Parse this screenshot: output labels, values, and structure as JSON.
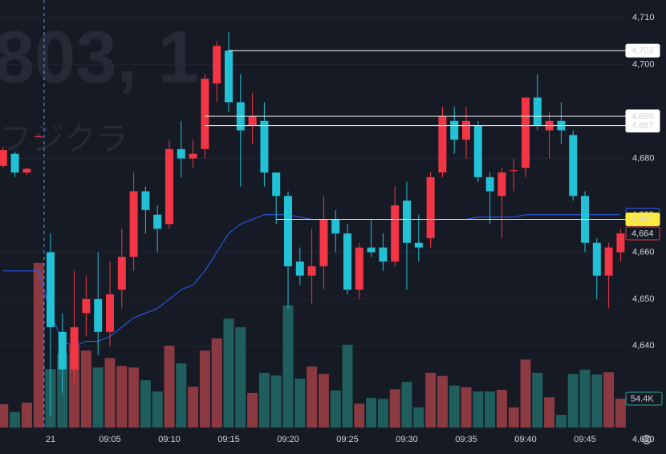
{
  "chart_data": {
    "type": "candlestick",
    "watermark_code": "803, 1",
    "watermark_name": "フジクラ",
    "categories": [
      null,
      null,
      null,
      null,
      "21",
      null,
      null,
      null,
      null,
      "09:05",
      null,
      null,
      null,
      null,
      "09:10",
      null,
      null,
      null,
      null,
      "09:15",
      null,
      null,
      null,
      null,
      "09:20",
      null,
      null,
      null,
      null,
      "09:25",
      null,
      null,
      null,
      null,
      "09:30",
      null,
      null,
      null,
      null,
      "09:35",
      null,
      null,
      null,
      null,
      "09:40",
      null,
      null,
      null,
      null,
      "09:45",
      null,
      null,
      null
    ],
    "open": [
      4678.4,
      4681,
      4677,
      4684.7,
      4660,
      4643,
      4635,
      4647,
      4650,
      4643,
      4652,
      4659,
      4673,
      4668,
      4666,
      4682,
      4680,
      4682,
      4696,
      4703,
      4692,
      4687,
      4688,
      4677,
      4672,
      4658,
      4655,
      4657,
      4667,
      4664,
      4652,
      4661,
      4661,
      4658,
      4671,
      4662,
      4663,
      4677,
      4688,
      4684,
      4687,
      4676,
      4672,
      4677.5,
      4678,
      4693,
      4686,
      4688,
      4685,
      4672,
      4662,
      4655,
      4660
    ],
    "high": [
      4682.5,
      4681.5,
      4678,
      4685,
      4664,
      4647,
      4656,
      4655,
      4660,
      4658,
      4665,
      4677,
      4674,
      4670,
      4684,
      4688,
      4684,
      4698,
      4705,
      4707,
      4698,
      4694,
      4692,
      4677,
      4673,
      4661,
      4665,
      4672,
      4669,
      4666,
      4662,
      4667,
      4664,
      4674,
      4675,
      4668,
      4677,
      4691,
      4691,
      4691,
      4688,
      4677,
      4678,
      4680,
      4693,
      4698,
      4690,
      4692,
      4686,
      4673,
      4663,
      4662,
      4665
    ],
    "low": [
      4678,
      4676,
      4676.5,
      4684.5,
      4625,
      4630,
      4632,
      4642,
      4638,
      4640,
      4648,
      4656,
      4664,
      4660,
      4665,
      4676,
      4678,
      4680,
      4692,
      4690,
      4674,
      4683,
      4674,
      4666,
      4648,
      4653,
      4649,
      4652,
      4660,
      4651,
      4650,
      4659,
      4656,
      4657,
      4652,
      4658,
      4661,
      4676,
      4681,
      4680,
      4675,
      4666,
      4663,
      4673,
      4676,
      4686,
      4680,
      4683,
      4671,
      4660,
      4650,
      4648,
      4658
    ],
    "close": [
      4681.8,
      4677,
      4677.8,
      4684.7,
      4644,
      4635,
      4644,
      4650,
      4643,
      4651,
      4659,
      4673,
      4669,
      4665,
      4682,
      4680,
      4681,
      4697,
      4704,
      4692,
      4686,
      4689,
      4677,
      4672,
      4657,
      4655,
      4657,
      4667,
      4664,
      4652,
      4661,
      4660,
      4658,
      4670,
      4662,
      4661,
      4676,
      4689,
      4684,
      4688,
      4676,
      4673,
      4677,
      4677.5,
      4693,
      4687,
      4688,
      4686,
      4672,
      4662,
      4655,
      4661,
      4664
    ],
    "volume": [
      44,
      29,
      47,
      310,
      110,
      140,
      156,
      145,
      113,
      131,
      116,
      113,
      89,
      68,
      154,
      121,
      77,
      145,
      168,
      205,
      189,
      65,
      103,
      98,
      230,
      92,
      115,
      101,
      70,
      156,
      45,
      56,
      54,
      72,
      86,
      38,
      103,
      97,
      79,
      76,
      68,
      68,
      71,
      38,
      128,
      103,
      57,
      24,
      101,
      109,
      100,
      104,
      54.4
    ],
    "volume_label": "54.4K",
    "volume_ylim": [
      0,
      805
    ],
    "ma": [
      4656,
      4656,
      4656,
      4656,
      4647,
      4641,
      4640,
      4641,
      4641,
      4642,
      4644,
      4646,
      4647,
      4648,
      4650,
      4652,
      4653,
      4656,
      4660,
      4664,
      4666,
      4667,
      4668,
      4668,
      4668,
      4667.5,
      4667,
      4667,
      4667,
      4667,
      4667,
      4667,
      4667,
      4667,
      4667,
      4667,
      4667,
      4667,
      4667,
      4667,
      4667.5,
      4667.5,
      4667.5,
      4667.5,
      4668,
      4668,
      4668,
      4668,
      4668,
      4668,
      4668,
      4668,
      4668
    ],
    "ma_color": "#2962ff",
    "up_color": "#f23645",
    "down_color": "#22c1d6",
    "up_volume_color": "#8a3a40",
    "down_volume_color": "#1f5e5c",
    "ylim": [
      4622.6,
      4713.8
    ],
    "yticks": [
      {
        "value": 4710,
        "label": "4,710"
      },
      {
        "value": 4700,
        "label": "4,700"
      },
      {
        "value": 4680,
        "label": "4,680"
      },
      {
        "value": 4660,
        "label": "4,660"
      },
      {
        "value": 4650,
        "label": "4,650"
      },
      {
        "value": 4640,
        "label": "4,640"
      },
      {
        "value": 4620,
        "label": "4,620"
      }
    ],
    "grid": true,
    "price_lines": [
      {
        "value": 4703,
        "label": "4,703",
        "color": "#ffffff",
        "line": true,
        "from_index": 19,
        "filled": true
      },
      {
        "value": 4689,
        "label": "4,689",
        "color": "#ffffff",
        "line": true,
        "from_index": 17,
        "filled": true
      },
      {
        "value": 4687,
        "label": "4,687",
        "color": "#ffffff",
        "line": true,
        "from_index": 17,
        "filled": true
      },
      {
        "value": 4668,
        "label": "4,668",
        "color": "#2962ff",
        "line": false,
        "from_index": 0,
        "filled": false
      },
      {
        "value": 4667,
        "label": "4,667",
        "color": "#ffeb3b",
        "line": true,
        "from_index": 23,
        "filled": true
      },
      {
        "value": 4664,
        "label": "4,664",
        "color": "#f23645",
        "line": false,
        "from_index": 0,
        "filled": false
      }
    ]
  }
}
